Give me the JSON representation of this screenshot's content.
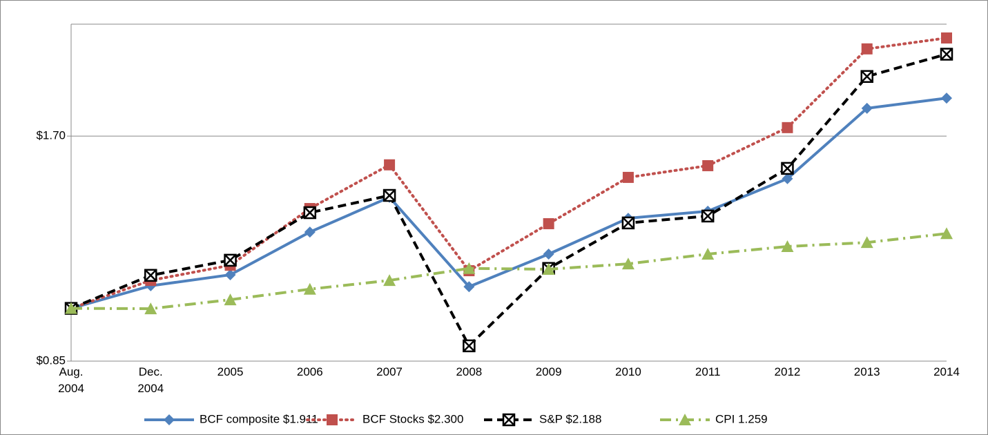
{
  "chart_data": {
    "type": "line",
    "categories": [
      "Aug. 2004",
      "Dec. 2004",
      "2005",
      "2006",
      "2007",
      "2008",
      "2009",
      "2010",
      "2011",
      "2012",
      "2013",
      "2014"
    ],
    "series": [
      {
        "name": "BCF composite $1.911",
        "color": "#4f81bd",
        "marker": "diamond",
        "dash": "solid",
        "values": [
          1.0,
          1.072,
          1.109,
          1.265,
          1.408,
          1.069,
          1.182,
          1.32,
          1.349,
          1.491,
          1.852,
          1.911
        ]
      },
      {
        "name": "BCF Stocks $2.300",
        "color": "#c0504d",
        "marker": "square",
        "dash": "dotted",
        "values": [
          1.0,
          1.09,
          1.142,
          1.36,
          1.556,
          1.123,
          1.298,
          1.497,
          1.552,
          1.745,
          2.224,
          2.3
        ]
      },
      {
        "name": "S&P $2.188",
        "color": "#000000",
        "marker": "xbox",
        "dash": "dashed",
        "values": [
          1.0,
          1.107,
          1.16,
          1.343,
          1.416,
          0.891,
          1.131,
          1.301,
          1.329,
          1.539,
          2.043,
          2.188
        ]
      },
      {
        "name": "CPI 1.259",
        "color": "#9bbb59",
        "marker": "triangle",
        "dash": "dashdot",
        "values": [
          1.0,
          0.999,
          1.027,
          1.061,
          1.09,
          1.131,
          1.128,
          1.147,
          1.182,
          1.21,
          1.225,
          1.259
        ]
      }
    ],
    "ylim": [
      0.85,
      2.4
    ],
    "log_scale": true,
    "yticks": [
      {
        "value": 0.85,
        "label": "$0.85"
      },
      {
        "value": 1.7,
        "label": "$1.70"
      }
    ],
    "grid": true,
    "legend": "bottom"
  }
}
